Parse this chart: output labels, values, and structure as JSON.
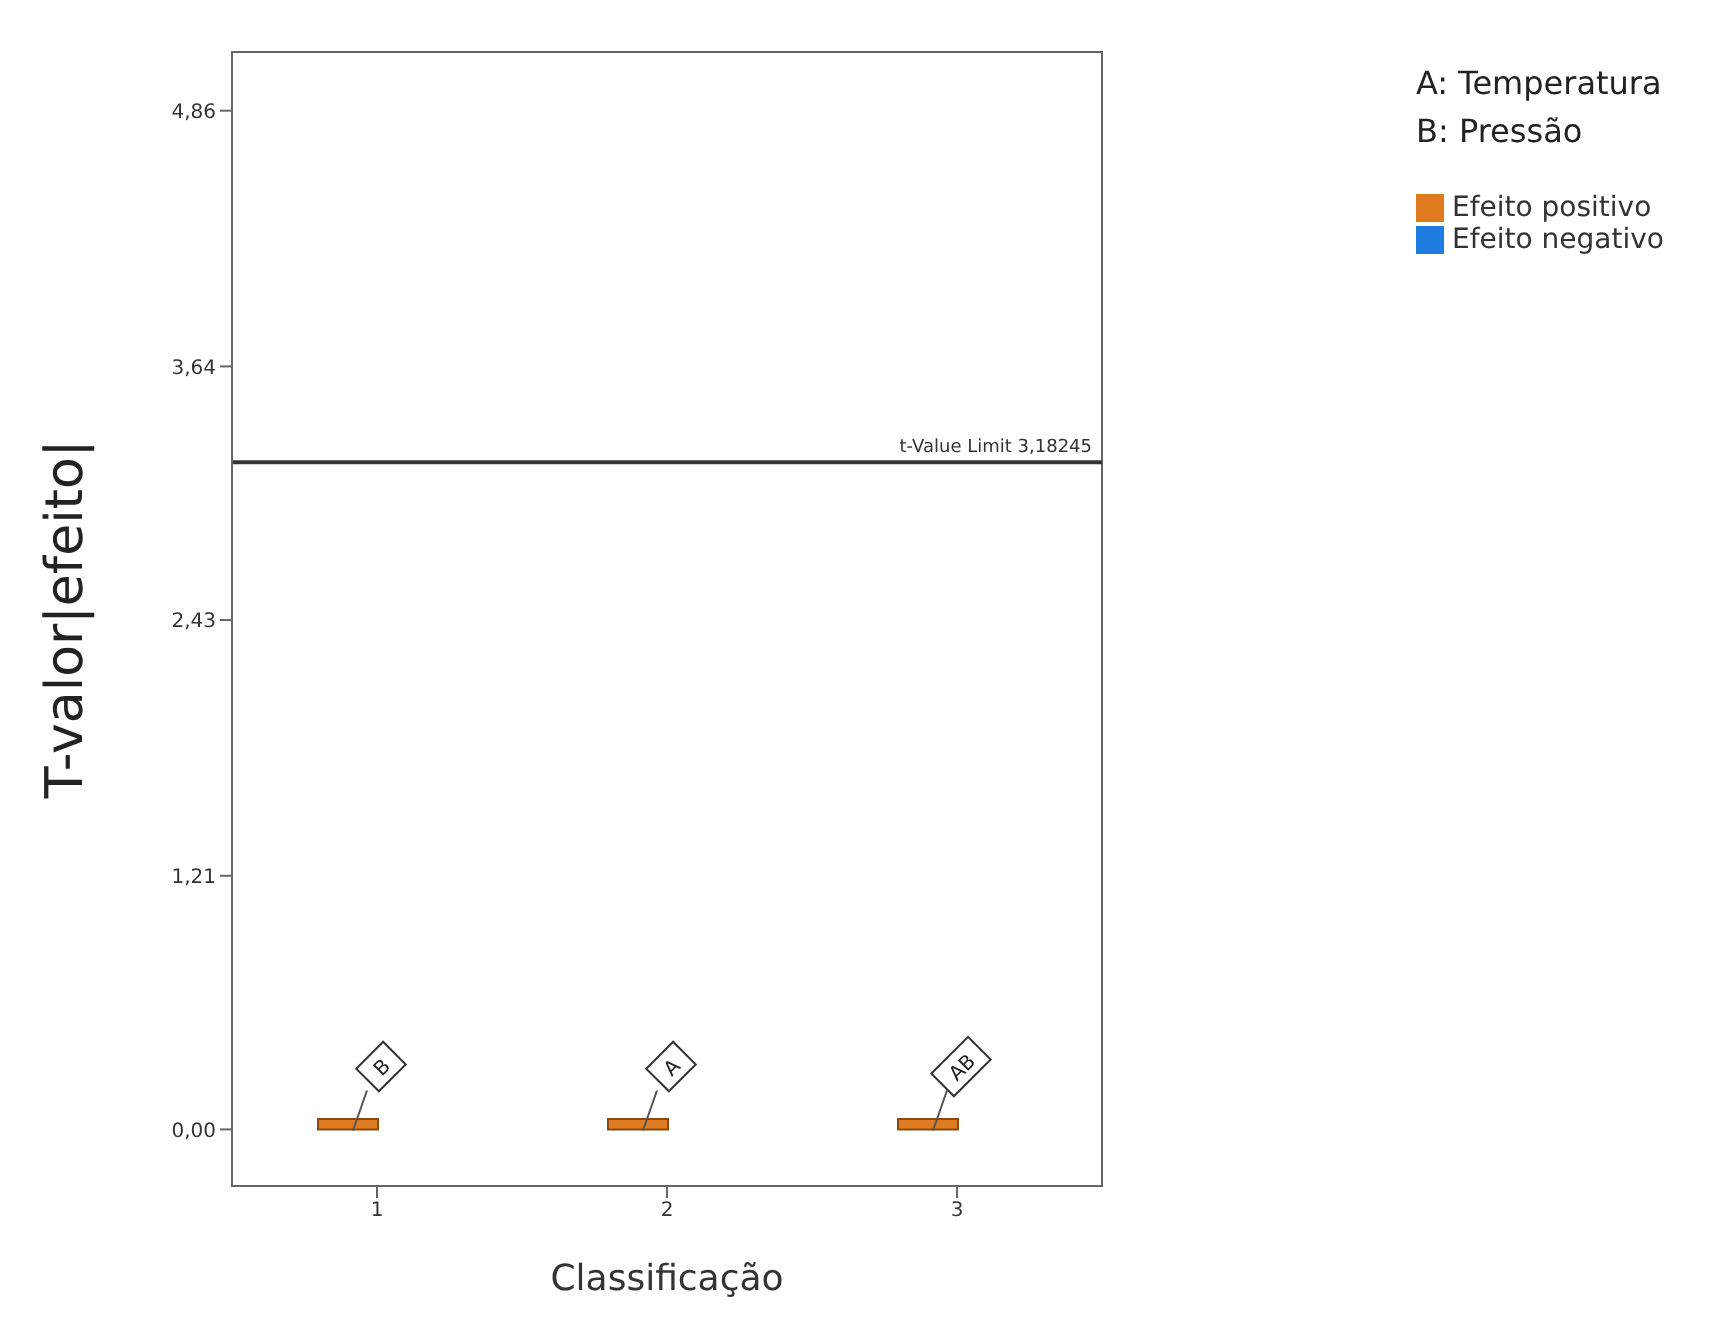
{
  "chart_data": {
    "type": "bar",
    "xlabel": "Classificação",
    "ylabel": "T-valor|efeito|",
    "categories": [
      "1",
      "2",
      "3"
    ],
    "series": [
      {
        "name": "Efeito positivo",
        "color": "#e07b20",
        "values": [
          0.05,
          0.05,
          0.05
        ]
      },
      {
        "name": "Efeito negativo",
        "color": "#1e7be0",
        "values": [
          null,
          null,
          null
        ]
      }
    ],
    "ylim": [
      -0.27,
      5.14
    ],
    "yticks": [
      {
        "value": 0,
        "label": "0,00"
      },
      {
        "value": 1.21,
        "label": "1,21"
      },
      {
        "value": 2.43,
        "label": "2,43"
      },
      {
        "value": 3.64,
        "label": "3,64"
      },
      {
        "value": 4.86,
        "label": "4,86"
      }
    ],
    "ref_lines": [
      {
        "axis": "y",
        "value": 3.18245,
        "label": "t-Value Limit 3,18245",
        "color": "#333333"
      }
    ],
    "annotations": [
      {
        "text": "B",
        "x": "1",
        "y": 0.3
      },
      {
        "text": "A",
        "x": "2",
        "y": 0.3
      },
      {
        "text": "AB",
        "x": "3",
        "y": 0.3
      },
      "A: Temperatura",
      "B: Pressão"
    ],
    "legend": "top right"
  }
}
